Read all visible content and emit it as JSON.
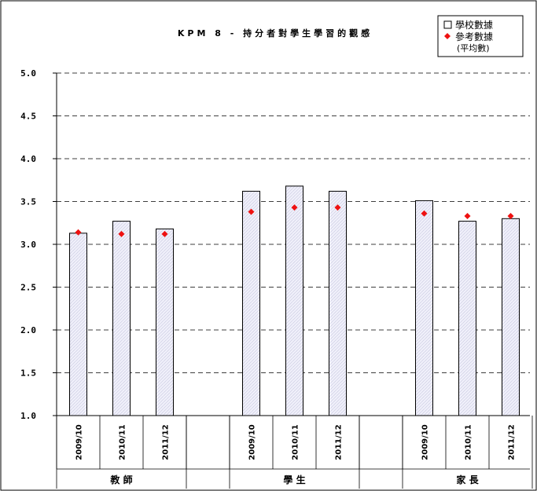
{
  "chart_data": {
    "type": "bar",
    "title": "KPM 8 - 持分者對學生學習的觀感",
    "ylim": [
      1.0,
      5.0
    ],
    "yticks": [
      "1.0",
      "1.5",
      "2.0",
      "2.5",
      "3.0",
      "3.5",
      "4.0",
      "4.5",
      "5.0"
    ],
    "grid": true,
    "legend_position": "top-right",
    "legend": {
      "school_label": "學校數據",
      "ref_label_line1": "參考數據",
      "ref_label_line2": "(平均數)"
    },
    "groups": [
      {
        "name": "教 師",
        "years": [
          "2009/10",
          "2010/11",
          "2011/12"
        ],
        "school": [
          3.13,
          3.27,
          3.18
        ],
        "reference": [
          3.14,
          3.12,
          3.12
        ]
      },
      {
        "name": "學 生",
        "years": [
          "2009/10",
          "2010/11",
          "2011/12"
        ],
        "school": [
          3.62,
          3.68,
          3.62
        ],
        "reference": [
          3.38,
          3.43,
          3.43
        ]
      },
      {
        "name": "家 長",
        "years": [
          "2009/10",
          "2010/11",
          "2011/12"
        ],
        "school": [
          3.51,
          3.27,
          3.3
        ],
        "reference": [
          3.36,
          3.33,
          3.33
        ]
      }
    ],
    "colors": {
      "bar_fill": "#eeeef8",
      "bar_stroke": "#000000",
      "reference_marker": "#ee1111",
      "grid": "#000000"
    }
  }
}
